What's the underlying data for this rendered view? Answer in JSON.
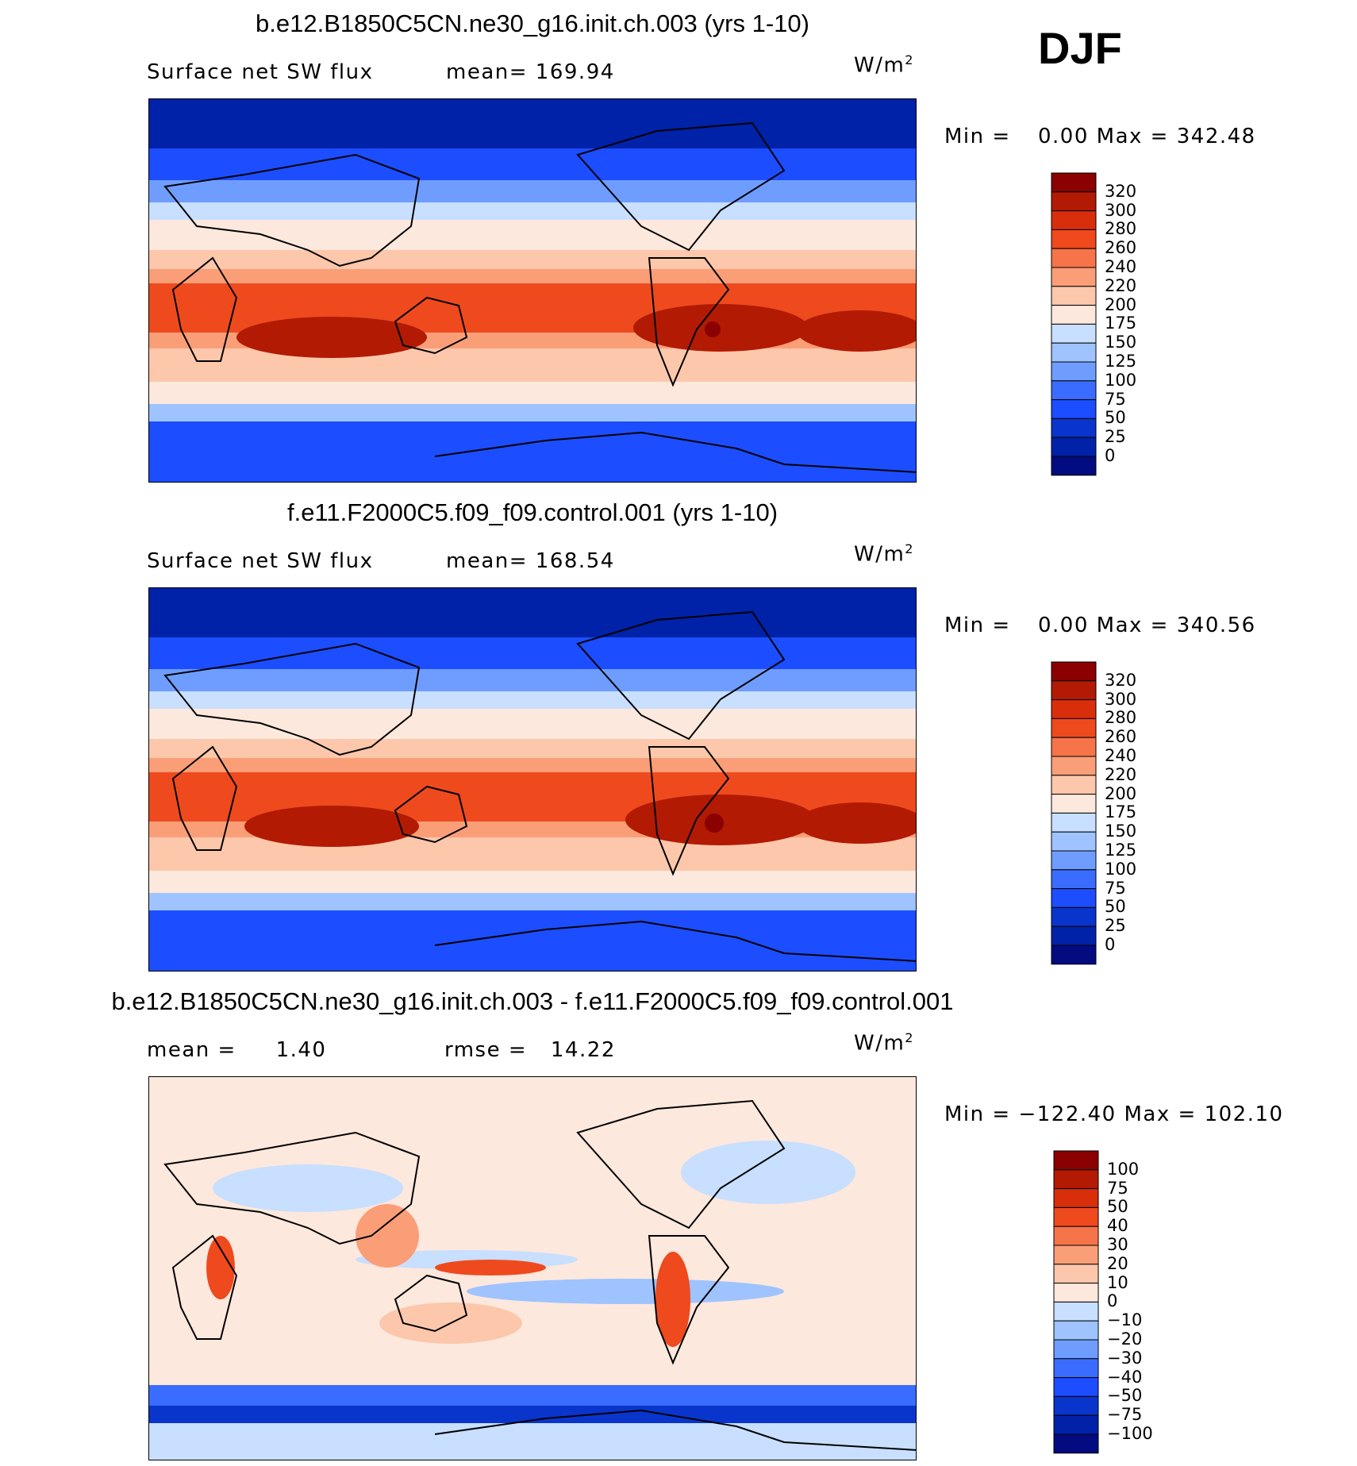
{
  "season_label": "DJF",
  "colors": {
    "abs_scale": [
      "#020b80",
      "#0022a8",
      "#0935cc",
      "#1c4dff",
      "#3a6dff",
      "#6f9dff",
      "#9fc3ff",
      "#c8dfff",
      "#e8f4ff",
      "#fde8dd",
      "#fcc7ab",
      "#fa9e78",
      "#f67449",
      "#ee4a1e",
      "#d82e0c",
      "#b21a04",
      "#8b0000"
    ],
    "diff_scale": [
      "#020b80",
      "#0022a8",
      "#0935cc",
      "#1c4dff",
      "#3a6dff",
      "#6f9dff",
      "#9fc3ff",
      "#c8dfff",
      "#e8f4ff",
      "#fde8dd",
      "#fcc7ab",
      "#fa9e78",
      "#f67449",
      "#ee4a1e",
      "#d82e0c",
      "#b21a04",
      "#8b0000"
    ]
  },
  "chart_data": [
    {
      "type": "heatmap",
      "title": "b.e12.B1850C5CN.ne30_g16.init.ch.003 (yrs 1-10)",
      "variable": "Surface net SW flux",
      "stat_label": "mean=",
      "stat_value": "169.94",
      "units": "W/m",
      "units_sup": "2",
      "min_label": "Min =",
      "min_value": "0.00",
      "max_label": "Max =",
      "max_value": "342.48",
      "levels": [
        "320",
        "300",
        "280",
        "260",
        "240",
        "220",
        "200",
        "175",
        "150",
        "125",
        "100",
        "75",
        "50",
        "25",
        "0"
      ]
    },
    {
      "type": "heatmap",
      "title": "f.e11.F2000C5.f09_f09.control.001 (yrs 1-10)",
      "variable": "Surface net SW flux",
      "stat_label": "mean=",
      "stat_value": "168.54",
      "units": "W/m",
      "units_sup": "2",
      "min_label": "Min =",
      "min_value": "0.00",
      "max_label": "Max =",
      "max_value": "340.56",
      "levels": [
        "320",
        "300",
        "280",
        "260",
        "240",
        "220",
        "200",
        "175",
        "150",
        "125",
        "100",
        "75",
        "50",
        "25",
        "0"
      ]
    },
    {
      "type": "heatmap",
      "title": "b.e12.B1850C5CN.ne30_g16.init.ch.003 - f.e11.F2000C5.f09_f09.control.001",
      "stat_label": "mean =",
      "stat_value": "1.40",
      "rmse_label": "rmse =",
      "rmse_value": "14.22",
      "units": "W/m",
      "units_sup": "2",
      "min_label": "Min =",
      "min_value": "−122.40",
      "max_label": "Max =",
      "max_value": "102.10",
      "levels": [
        "100",
        "75",
        "50",
        "40",
        "30",
        "20",
        "10",
        "0",
        "−10",
        "−20",
        "−30",
        "−40",
        "−50",
        "−75",
        "−100"
      ]
    }
  ]
}
